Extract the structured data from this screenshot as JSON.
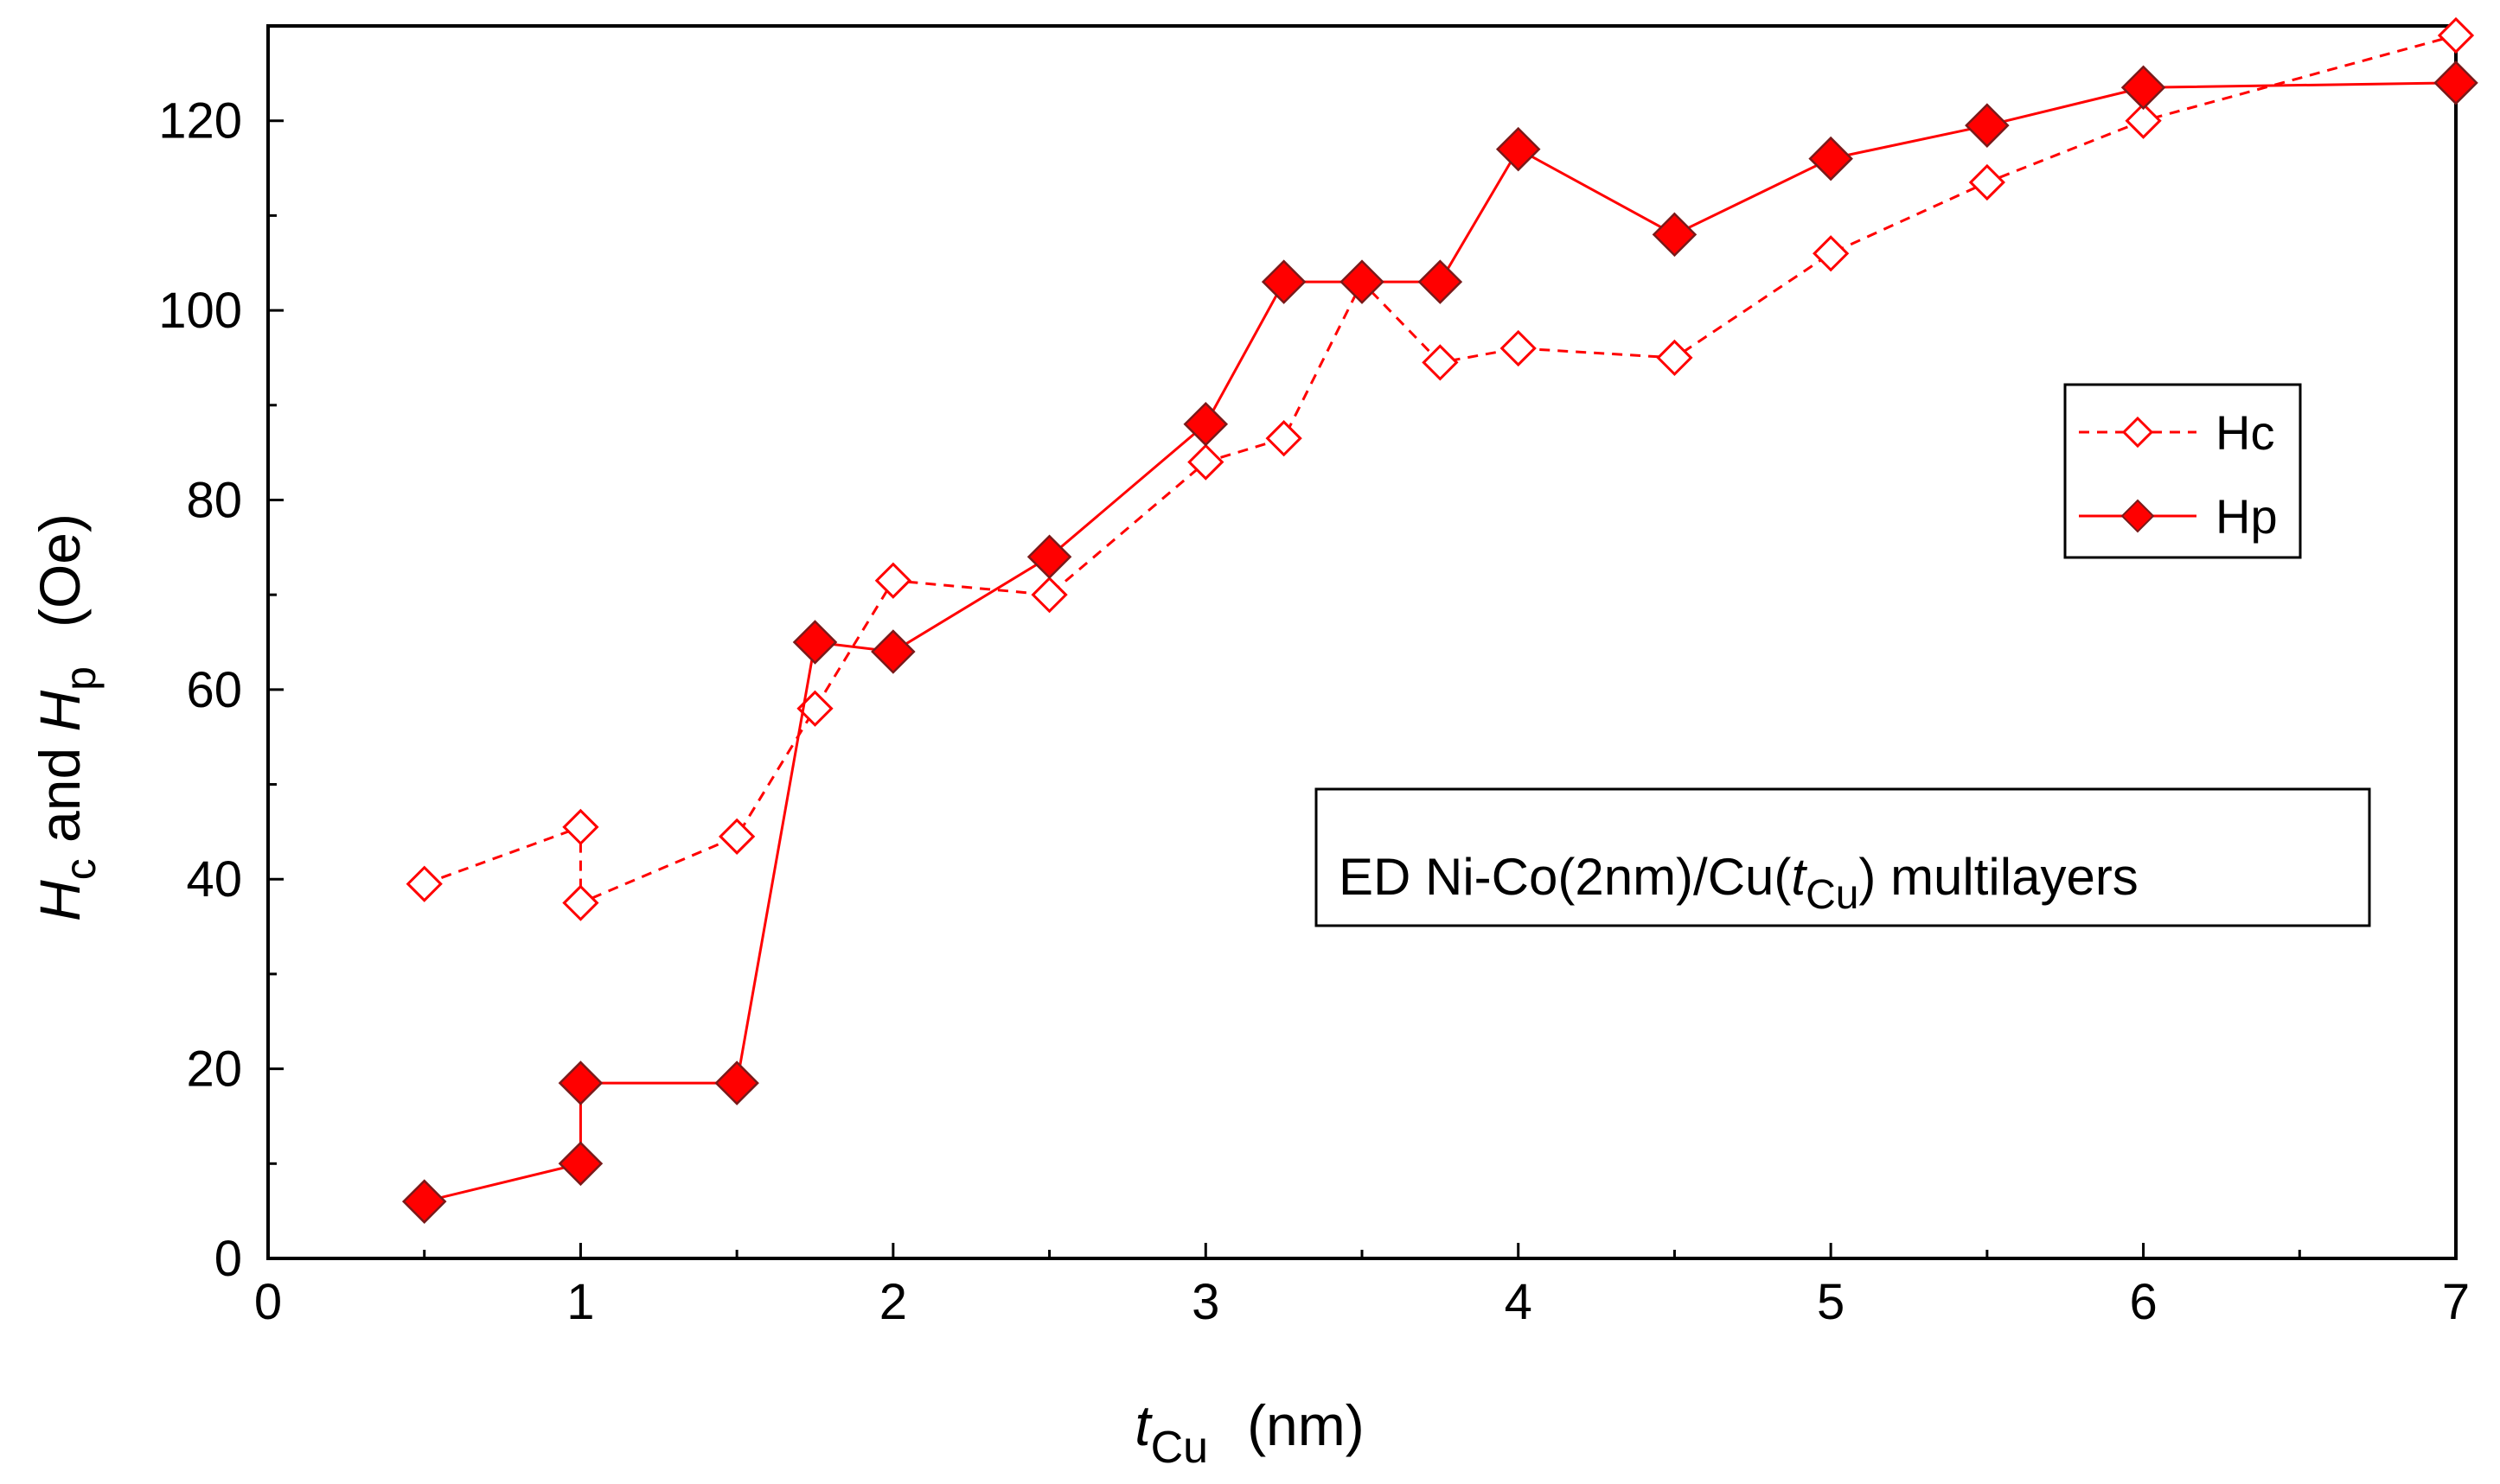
{
  "chart_data": {
    "type": "line",
    "title": "",
    "xlim": [
      0,
      7
    ],
    "ylim": [
      0,
      130
    ],
    "x_ticks": [
      0,
      1,
      2,
      3,
      4,
      5,
      6,
      7
    ],
    "y_ticks": [
      0,
      20,
      40,
      60,
      80,
      100,
      120
    ],
    "grid": false,
    "legend_position": "right",
    "xlabel": {
      "italic": "t",
      "sub": "Cu",
      "units": "(nm)"
    },
    "ylabel": {
      "part1_italic": "H",
      "part1_sub": "c",
      "joiner": " and ",
      "part2_italic": "H",
      "part2_sub": "p",
      "units": "(Oe)"
    },
    "annotation": {
      "prefix": "ED Ni-Co(2nm)/Cu(",
      "italic": "t",
      "sub": "Cu",
      "suffix": ") multilayers"
    },
    "series": [
      {
        "name": "Hc",
        "color": "#ff0000",
        "line_style": "dashed",
        "marker": "diamond-open",
        "x": [
          0.5,
          1,
          1,
          1.5,
          1.75,
          2,
          2.5,
          3,
          3.25,
          3.5,
          3.75,
          4,
          4.5,
          5,
          5.5,
          6,
          7
        ],
        "y": [
          39.5,
          45.5,
          37.5,
          44.5,
          58,
          71.5,
          70,
          84,
          86.5,
          103,
          94.5,
          96,
          95,
          106,
          113.5,
          120,
          129
        ]
      },
      {
        "name": "Hp",
        "color": "#ff0000",
        "line_style": "solid",
        "marker": "diamond-filled",
        "x": [
          0.5,
          1,
          1,
          1.5,
          1.75,
          2,
          2.5,
          3,
          3.25,
          3.5,
          3.75,
          4,
          4.5,
          5,
          5.5,
          6,
          7
        ],
        "y": [
          6,
          10,
          18.5,
          18.5,
          65,
          64,
          74,
          88,
          103,
          103,
          103,
          117,
          108,
          116,
          119.5,
          123.5,
          124
        ]
      }
    ]
  }
}
